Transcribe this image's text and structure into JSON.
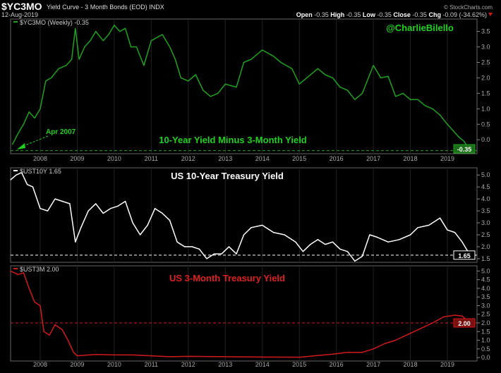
{
  "header": {
    "symbol": "$YC3MO",
    "description": "Yield Curve - 3 Month Bonds (EOD) INDX",
    "brand": "© StockCharts.com",
    "date": "12-Aug-2019",
    "quote": {
      "open_label": "Open",
      "open": "-0.35",
      "high_label": "High",
      "high": "-0.35",
      "low_label": "Low",
      "low": "-0.35",
      "close_label": "Close",
      "close": "-0.35",
      "chg_label": "Chg",
      "chg": "-0.09 (-34.62%)"
    }
  },
  "colors": {
    "green": "#1fa21f",
    "white": "#ffffff",
    "red": "#d21a1a",
    "grid": "#555555"
  },
  "chart_data": [
    {
      "type": "line",
      "legend": "$YC3MO (Weekly) -0.35",
      "title": "10-Year Yield Minus 3-Month Yield",
      "watermark": "@CharlieBilello",
      "annotation": "Apr 2007",
      "last_value": "-0.35",
      "reference_line": -0.35,
      "ylim": [
        -0.45,
        3.9
      ],
      "yticks": [
        "3.5",
        "3.0",
        "2.5",
        "2.0",
        "1.5",
        "1.0",
        "0.5",
        "0.0"
      ],
      "x": [
        2007.25,
        2007.4,
        2007.55,
        2007.7,
        2007.85,
        2008.0,
        2008.15,
        2008.3,
        2008.5,
        2008.7,
        2008.85,
        2008.95,
        2009.05,
        2009.2,
        2009.35,
        2009.5,
        2009.7,
        2009.85,
        2010.0,
        2010.15,
        2010.3,
        2010.45,
        2010.6,
        2010.8,
        2011.0,
        2011.15,
        2011.3,
        2011.5,
        2011.65,
        2011.8,
        2012.0,
        2012.2,
        2012.4,
        2012.6,
        2012.8,
        2013.0,
        2013.3,
        2013.5,
        2013.7,
        2014.0,
        2014.3,
        2014.5,
        2014.8,
        2015.0,
        2015.2,
        2015.5,
        2015.7,
        2015.9,
        2016.1,
        2016.3,
        2016.5,
        2016.7,
        2016.9,
        2017.0,
        2017.2,
        2017.4,
        2017.6,
        2017.8,
        2018.0,
        2018.2,
        2018.4,
        2018.6,
        2018.8,
        2019.0,
        2019.15,
        2019.3,
        2019.45,
        2019.61
      ],
      "values": [
        -0.15,
        0.2,
        0.5,
        0.9,
        0.7,
        1.0,
        1.9,
        2.0,
        2.3,
        2.4,
        2.6,
        3.6,
        2.6,
        3.0,
        3.2,
        3.5,
        3.2,
        3.4,
        3.7,
        3.5,
        3.6,
        3.0,
        3.0,
        2.4,
        3.2,
        3.3,
        3.4,
        3.0,
        2.6,
        2.0,
        1.9,
        2.1,
        1.6,
        1.4,
        1.5,
        1.8,
        1.7,
        2.5,
        2.6,
        2.9,
        2.7,
        2.5,
        2.3,
        1.8,
        2.0,
        2.3,
        2.1,
        2.0,
        1.7,
        1.6,
        1.3,
        1.5,
        2.1,
        2.4,
        2.0,
        2.05,
        1.4,
        1.5,
        1.3,
        1.3,
        1.1,
        1.0,
        0.8,
        0.5,
        0.3,
        0.1,
        -0.05,
        -0.35
      ]
    },
    {
      "type": "line",
      "legend": "$UST10Y 1.65",
      "title": "US 10-Year Treasury Yield",
      "last_value": "1.65",
      "reference_line": 1.65,
      "ylim": [
        1.35,
        5.3
      ],
      "yticks": [
        "5.0",
        "4.5",
        "4.0",
        "3.5",
        "3.0",
        "2.5",
        "2.0",
        "1.5"
      ],
      "x": [
        2007.2,
        2007.35,
        2007.5,
        2007.65,
        2007.8,
        2008.0,
        2008.2,
        2008.4,
        2008.6,
        2008.8,
        2008.95,
        2009.1,
        2009.3,
        2009.5,
        2009.7,
        2009.9,
        2010.1,
        2010.3,
        2010.5,
        2010.7,
        2010.9,
        2011.1,
        2011.3,
        2011.5,
        2011.7,
        2011.9,
        2012.1,
        2012.3,
        2012.5,
        2012.7,
        2012.9,
        2013.1,
        2013.3,
        2013.5,
        2013.7,
        2014.0,
        2014.3,
        2014.6,
        2014.9,
        2015.1,
        2015.3,
        2015.5,
        2015.7,
        2015.9,
        2016.1,
        2016.3,
        2016.5,
        2016.7,
        2016.9,
        2017.1,
        2017.4,
        2017.7,
        2018.0,
        2018.2,
        2018.5,
        2018.8,
        2019.0,
        2019.2,
        2019.4,
        2019.61
      ],
      "values": [
        4.8,
        5.0,
        5.1,
        4.6,
        4.5,
        3.6,
        3.5,
        4.0,
        3.9,
        3.8,
        2.2,
        2.8,
        3.5,
        3.8,
        3.4,
        3.6,
        3.7,
        3.9,
        3.0,
        2.5,
        2.9,
        3.6,
        3.4,
        3.1,
        2.2,
        2.0,
        2.0,
        1.9,
        1.5,
        1.7,
        1.7,
        2.0,
        1.7,
        2.5,
        2.8,
        2.9,
        2.6,
        2.5,
        2.2,
        1.8,
        2.1,
        2.3,
        2.1,
        2.2,
        1.9,
        1.8,
        1.4,
        1.6,
        2.5,
        2.4,
        2.2,
        2.3,
        2.5,
        2.8,
        2.9,
        3.2,
        2.7,
        2.6,
        2.2,
        1.65
      ]
    },
    {
      "type": "line",
      "legend": "$UST3M 2.00",
      "title": "US 3-Month Treasury Yield",
      "last_value": "2.00",
      "reference_line": 2.0,
      "ylim": [
        -0.2,
        5.3
      ],
      "yticks": [
        "5.0",
        "4.5",
        "4.0",
        "3.5",
        "3.0",
        "2.5",
        "2.0",
        "1.5",
        "1.0",
        "0.5",
        "0.0"
      ],
      "x": [
        2007.2,
        2007.4,
        2007.55,
        2007.7,
        2007.85,
        2008.0,
        2008.1,
        2008.25,
        2008.4,
        2008.6,
        2008.75,
        2008.9,
        2009.0,
        2009.5,
        2010.0,
        2010.5,
        2011.0,
        2011.5,
        2012.0,
        2013.0,
        2014.0,
        2015.0,
        2015.9,
        2016.3,
        2016.7,
        2017.0,
        2017.3,
        2017.6,
        2018.0,
        2018.3,
        2018.6,
        2018.9,
        2019.2,
        2019.4,
        2019.5,
        2019.61
      ],
      "values": [
        5.0,
        4.8,
        4.9,
        4.0,
        3.2,
        3.0,
        1.5,
        1.3,
        1.9,
        1.6,
        1.0,
        0.3,
        0.1,
        0.18,
        0.15,
        0.15,
        0.1,
        0.05,
        0.07,
        0.05,
        0.03,
        0.02,
        0.2,
        0.3,
        0.3,
        0.5,
        0.8,
        1.0,
        1.4,
        1.7,
        2.0,
        2.35,
        2.45,
        2.4,
        2.2,
        2.0
      ]
    }
  ],
  "x_axis": {
    "range": [
      2007.2,
      2019.8
    ],
    "tick_labels": [
      "2008",
      "2009",
      "2010",
      "2011",
      "2012",
      "2013",
      "2014",
      "2015",
      "2016",
      "2017",
      "2018",
      "2019"
    ]
  }
}
